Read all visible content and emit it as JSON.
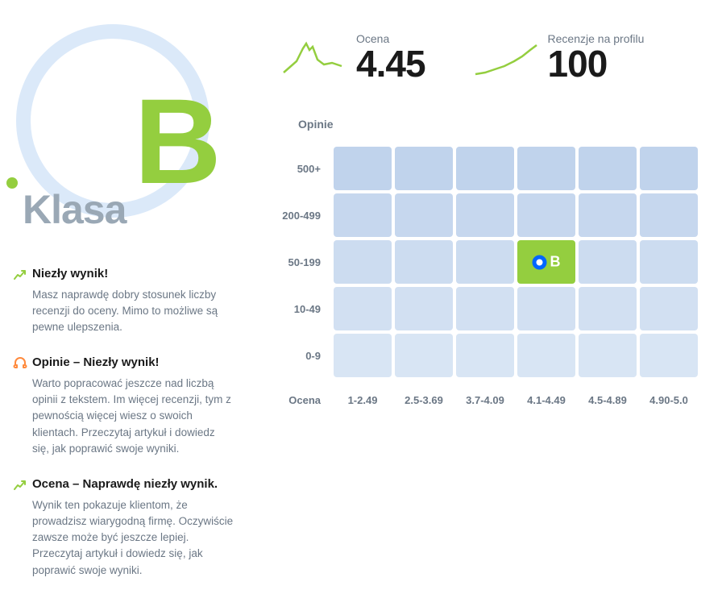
{
  "grade": {
    "label": "Klasa",
    "letter": "B",
    "letter_color": "#94ce3f",
    "label_color": "#9aa8b5",
    "circle_color": "#dbe9f9"
  },
  "tips": [
    {
      "icon": "trend-up",
      "icon_color": "#94ce3f",
      "title": "Niezły wynik!",
      "text": "Masz naprawdę dobry stosunek liczby recenzji do oceny. Mimo to możliwe są pewne ulepszenia."
    },
    {
      "icon": "headphones",
      "icon_color": "#ff8a3d",
      "title": "Opinie – Niezły wynik!",
      "text": "Warto popracować jeszcze nad liczbą opinii z tekstem. Im więcej recenzji, tym z pewnością więcej wiesz o swoich klientach. Przeczytaj artykuł i dowiedz się, jak poprawić swoje wyniki."
    },
    {
      "icon": "trend-up",
      "icon_color": "#94ce3f",
      "title": "Ocena – Naprawdę niezły wynik.",
      "text": "Wynik ten pokazuje klientom, że prowadzisz wiarygodną firmę. Oczywiście zawsze może być jeszcze lepiej. Przeczytaj artykuł i dowiedz się, jak poprawić swoje wyniki."
    }
  ],
  "metrics": {
    "rating": {
      "label": "Ocena",
      "value": "4.45",
      "spark_color": "#94ce3f"
    },
    "reviews": {
      "label": "Recenzje na profilu",
      "value": "100",
      "spark_color": "#94ce3f"
    }
  },
  "heatmap": {
    "y_title": "Opinie",
    "x_title": "Ocena",
    "row_labels": [
      "500+",
      "200-499",
      "50-199",
      "10-49",
      "0-9"
    ],
    "col_labels": [
      "1-2.49",
      "2.5-3.69",
      "3.7-4.09",
      "4.1-4.49",
      "4.5-4.89",
      "4.90-5.0"
    ],
    "cell_colors": [
      [
        "#c0d3ec",
        "#c0d3ec",
        "#c0d3ec",
        "#c0d3ec",
        "#c0d3ec",
        "#c0d3ec"
      ],
      [
        "#c6d7ee",
        "#c6d7ee",
        "#c6d7ee",
        "#c6d7ee",
        "#c6d7ee",
        "#c6d7ee"
      ],
      [
        "#ccdcf0",
        "#ccdcf0",
        "#ccdcf0",
        "#ccdcf0",
        "#ccdcf0",
        "#ccdcf0"
      ],
      [
        "#d2e0f2",
        "#d2e0f2",
        "#d2e0f2",
        "#d2e0f2",
        "#d2e0f2",
        "#d2e0f2"
      ],
      [
        "#d8e5f4",
        "#d8e5f4",
        "#d8e5f4",
        "#d8e5f4",
        "#d8e5f4",
        "#d8e5f4"
      ]
    ],
    "highlight": {
      "row": 2,
      "col": 3,
      "color": "#94ce3f",
      "letter": "B",
      "ring_color": "#0066ff"
    }
  }
}
